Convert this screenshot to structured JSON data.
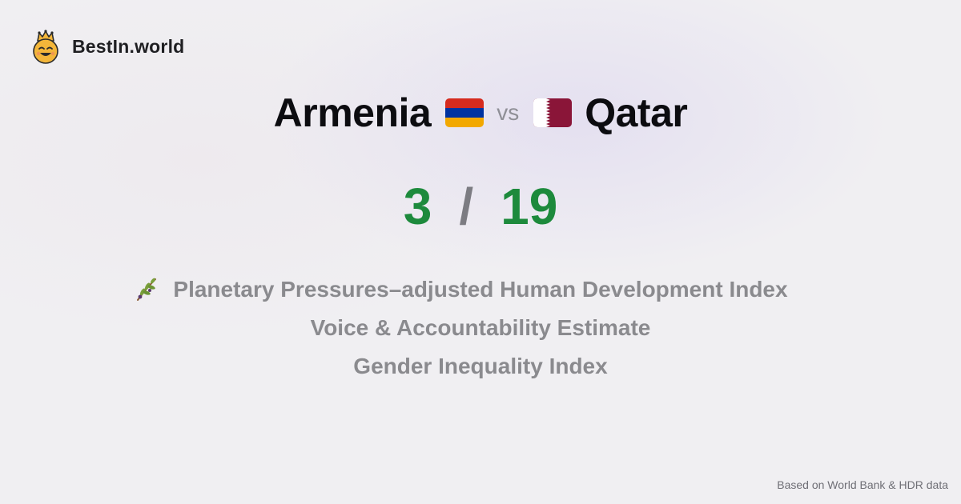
{
  "brand": {
    "name": "BestIn.world",
    "logo_icon": "crowned-smiley-icon"
  },
  "comparison": {
    "left_country": "Armenia",
    "left_flag_icon": "armenia-flag-icon",
    "vs_label": "vs",
    "right_country": "Qatar",
    "right_flag_icon": "qatar-flag-icon"
  },
  "score": {
    "left": "3",
    "separator": "/",
    "right": "19",
    "color": "#1d8a3c"
  },
  "metrics": [
    {
      "label": "Planetary Pressures–adjusted Human Development Index",
      "icon": "olive-branch-icon"
    },
    {
      "label": "Voice & Accountability Estimate"
    },
    {
      "label": "Gender Inequality Index"
    }
  ],
  "footer": {
    "source": "Based on World Bank & HDR data"
  },
  "colors": {
    "background": "#f0eff2",
    "score_green": "#1d8a3c",
    "metric_gray": "#8a8a8e",
    "armenia_red": "#d52b1e",
    "armenia_blue": "#0033a0",
    "armenia_orange": "#f2a800",
    "qatar_maroon": "#8a1538"
  }
}
